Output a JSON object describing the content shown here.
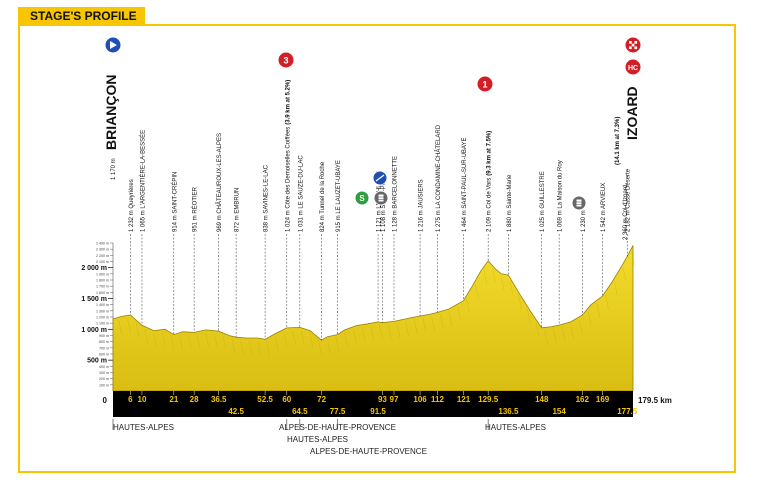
{
  "header": {
    "title": "STAGE'S PROFILE"
  },
  "start": {
    "name": "BRIANÇON",
    "altitude": "1 170 m"
  },
  "finish": {
    "name": "IZOARD",
    "detail": "(14.1 km at 7.3%)",
    "altitude": "2 360 m Col d'Izoard"
  },
  "distance_total": "179.5 km",
  "start_km": "0",
  "y_axis": {
    "major": [
      {
        "label": "2 000 m",
        "value": 2000
      },
      {
        "label": "1 500 m",
        "value": 1500
      },
      {
        "label": "1 000 m",
        "value": 1000
      },
      {
        "label": "500 m",
        "value": 500
      }
    ],
    "minor": [
      {
        "label": "2 400 m",
        "value": 2400
      },
      {
        "label": "2 300 m",
        "value": 2300
      },
      {
        "label": "2 200 m",
        "value": 2200
      },
      {
        "label": "2 100 m",
        "value": 2100
      },
      {
        "label": "1 900 m",
        "value": 1900
      },
      {
        "label": "1 800 m",
        "value": 1800
      },
      {
        "label": "1 700 m",
        "value": 1700
      },
      {
        "label": "1 600 m",
        "value": 1600
      },
      {
        "label": "1 400 m",
        "value": 1400
      },
      {
        "label": "1 300 m",
        "value": 1300
      },
      {
        "label": "1 200 m",
        "value": 1200
      },
      {
        "label": "1 100 m",
        "value": 1100
      },
      {
        "label": "900 m",
        "value": 900
      },
      {
        "label": "800 m",
        "value": 800
      },
      {
        "label": "700 m",
        "value": 700
      },
      {
        "label": "600 m",
        "value": 600
      },
      {
        "label": "400 m",
        "value": 400
      },
      {
        "label": "300 m",
        "value": 300
      },
      {
        "label": "200 m",
        "value": 200
      },
      {
        "label": "100 m",
        "value": 100
      }
    ]
  },
  "km_ticks_top": [
    "6",
    "10",
    "21",
    "28",
    "36.5",
    "52.5",
    "60",
    "72",
    "93",
    "97",
    "106",
    "112",
    "121",
    "129.5",
    "148",
    "162",
    "169"
  ],
  "km_ticks_bottom": [
    "42.5",
    "64.5",
    "77.5",
    "91.5",
    "136.5",
    "154",
    "177.5"
  ],
  "waypoints": [
    {
      "label": "1 232 m Queyrières"
    },
    {
      "label": "1 065 m L'ARGENTIÈRE-LA-BESSÉE"
    },
    {
      "label": "914 m SAINT-CRÉPIN"
    },
    {
      "label": "951 m RÉOTIER"
    },
    {
      "label": "969 m CHÂTEAUROUX-LES-ALPES"
    },
    {
      "label": "872 m EMBRUN"
    },
    {
      "label": "838 m SAVINES-LE-LAC"
    },
    {
      "label": "1 024 m Côte des Demoiselles Coiffées",
      "bold": "(3.9 km at 5.2%)"
    },
    {
      "label": "1 031 m LE SAUZE-DU-LAC"
    },
    {
      "label": "824 m Tunnel de la Roche"
    },
    {
      "label": "915 m LE LAUZET-UBAYE"
    },
    {
      "label": "1 121 m LES THUILES"
    },
    {
      "label": "1 108 m SAINT-PONS"
    },
    {
      "label": "1 128 m BARCELONNETTE"
    },
    {
      "label": "1 216 m JAUSIERS"
    },
    {
      "label": "1 275 m LA CONDAMINE-CHÂTELARD"
    },
    {
      "label": "1 464 m SAINT-PAUL-SUR-UBAYE"
    },
    {
      "label": "2 109 m Col de Vars",
      "bold": "(9.3 km at 7.5%)"
    },
    {
      "label": "1 880 m Sainte-Marie"
    },
    {
      "label": "1 025 m GUILLESTRE"
    },
    {
      "label": "1 069 m La Maison du Roy"
    },
    {
      "label": "1 230 m"
    },
    {
      "label": "1 542 m ARVIEUX"
    },
    {
      "label": "2 182 m Casse Déserte"
    }
  ],
  "markers": {
    "start_badge": "start-arrow",
    "finish_badge": "finish-flag",
    "climb_3": "3",
    "climb_1": "1",
    "climb_hc": "HC",
    "sprint": "S",
    "feed": "feed-zone"
  },
  "regions": [
    {
      "label": "HAUTES-ALPES"
    },
    {
      "label": "ALPES-DE-HAUTE-PROVENCE"
    },
    {
      "label": "HAUTES-ALPES"
    },
    {
      "label": "ALPES-DE-HAUTE-PROVENCE"
    },
    {
      "label": "HAUTES-ALPES"
    }
  ],
  "colors": {
    "accent": "#f7c600",
    "profile_fill": "#ecd21f",
    "profile_dark": "#b89a00",
    "band": "#000000",
    "climb_red": "#d21f26",
    "sprint_green": "#2e9e3e",
    "start_blue": "#1f4fb4"
  },
  "chart_data": {
    "type": "area",
    "xlabel": "",
    "ylabel": "",
    "xlim": [
      0,
      179.5
    ],
    "ylim": [
      0,
      2400
    ],
    "series": [
      {
        "x": [
          0,
          3,
          6,
          10,
          14,
          18,
          21,
          24,
          28,
          32,
          36.5,
          40,
          42.5,
          46,
          50,
          52.5,
          56,
          60,
          64.5,
          68,
          72,
          74,
          77.5,
          80,
          84,
          88,
          91.5,
          93,
          97,
          100,
          103,
          106,
          109,
          112,
          116,
          121,
          124,
          127,
          129.5,
          132,
          134,
          136.5,
          140,
          144,
          148,
          151,
          154,
          158,
          162,
          165,
          169,
          172,
          175,
          177.5,
          179.5
        ],
        "y": [
          1170,
          1210,
          1232,
          1065,
          980,
          1000,
          914,
          960,
          951,
          990,
          969,
          900,
          872,
          860,
          860,
          838,
          930,
          1024,
          1031,
          980,
          824,
          880,
          915,
          990,
          1060,
          1090,
          1121,
          1108,
          1128,
          1160,
          1190,
          1216,
          1240,
          1275,
          1330,
          1464,
          1700,
          1950,
          2109,
          1980,
          1900,
          1880,
          1600,
          1300,
          1025,
          1040,
          1069,
          1120,
          1230,
          1400,
          1542,
          1750,
          1980,
          2182,
          2360
        ]
      }
    ]
  }
}
